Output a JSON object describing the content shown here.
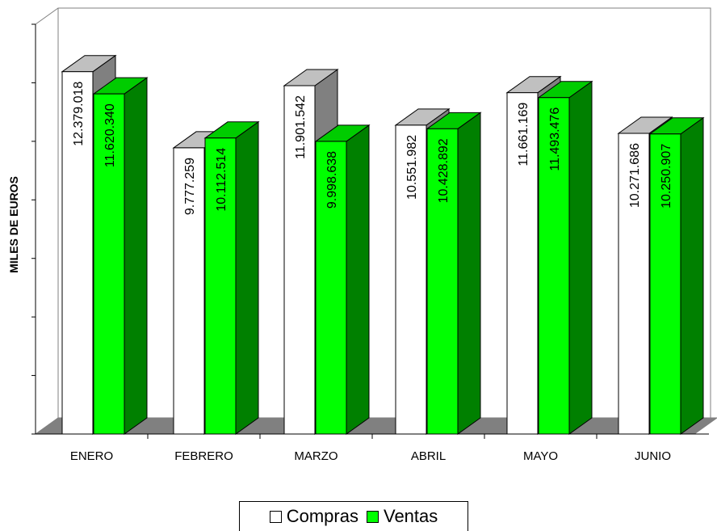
{
  "chart_data": {
    "type": "bar",
    "categories": [
      "ENERO",
      "FEBRERO",
      "MARZO",
      "ABRIL",
      "MAYO",
      "JUNIO"
    ],
    "series": [
      {
        "name": "Compras",
        "values": [
          12379018,
          9777259,
          11901542,
          10551982,
          11661169,
          10271686
        ],
        "labels": [
          "12.379.018",
          "9.777.259",
          "11.901.542",
          "10.551.982",
          "11.661.169",
          "10.271.686"
        ],
        "color": "#ffffff",
        "side_color": "#808080",
        "top_color": "#c0c0c0"
      },
      {
        "name": "Ventas",
        "values": [
          11620340,
          10112514,
          9998638,
          10428892,
          11493476,
          10250907
        ],
        "labels": [
          "11.620.340",
          "10.112.514",
          "9.998.638",
          "10.428.892",
          "11.493.476",
          "10.250.907"
        ],
        "color": "#00ff00",
        "side_color": "#008000",
        "top_color": "#00cc00"
      }
    ],
    "ylabel": "MILES DE EUROS",
    "ylim": [
      0,
      14000000
    ],
    "y_ticks": 7,
    "grid": false,
    "legend": "bottom",
    "style": "3d-clustered-column"
  }
}
